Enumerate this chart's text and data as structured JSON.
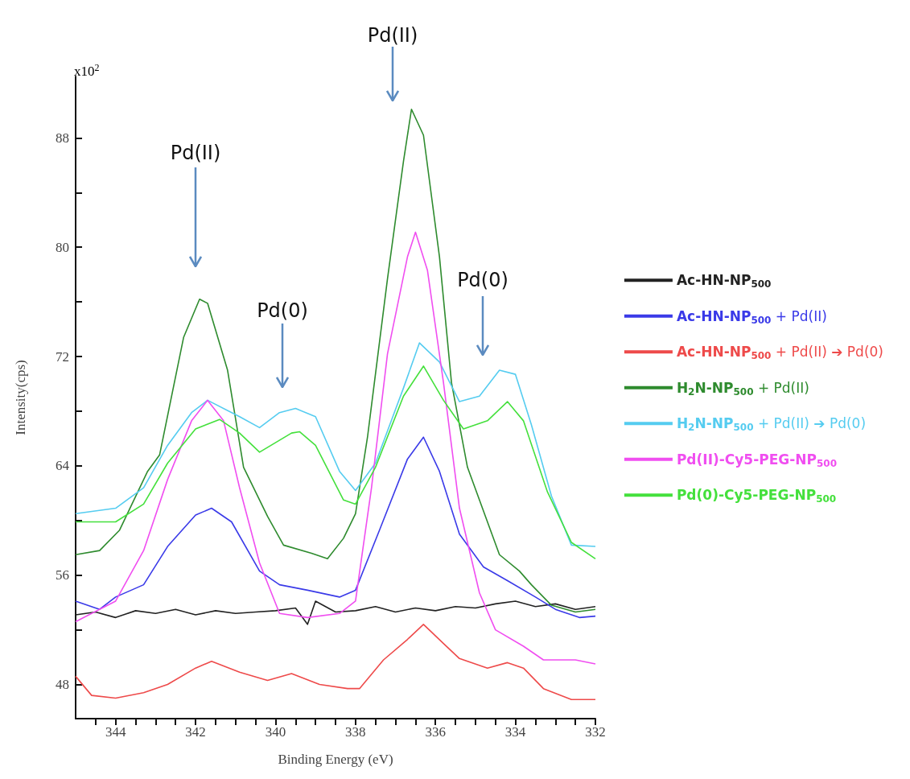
{
  "chart_data": {
    "type": "line",
    "xlabel": "Binding Energy (eV)",
    "ylabel": "Intensity(cps)",
    "xlim": [
      345,
      332
    ],
    "ylim": [
      45.5,
      92.5
    ],
    "xticks": [
      {
        "value": 344.5,
        "label": null
      },
      344,
      {
        "value": 343.5,
        "label": null
      },
      {
        "value": 343,
        "label": null
      },
      {
        "value": 342.5,
        "label": null
      },
      342,
      {
        "value": 341.5,
        "label": null
      },
      {
        "value": 341,
        "label": null
      },
      {
        "value": 340.5,
        "label": null
      },
      340,
      {
        "value": 339.5,
        "label": null
      },
      {
        "value": 339,
        "label": null
      },
      {
        "value": 338.5,
        "label": null
      },
      338,
      {
        "value": 337.5,
        "label": null
      },
      {
        "value": 337,
        "label": null
      },
      {
        "value": 336.5,
        "label": null
      },
      336,
      {
        "value": 335.5,
        "label": null
      },
      {
        "value": 335,
        "label": null
      },
      {
        "value": 334.5,
        "label": null
      },
      334,
      {
        "value": 333.5,
        "label": null
      },
      {
        "value": 333,
        "label": null
      },
      {
        "value": 332.5,
        "label": null
      },
      332
    ],
    "yticks": [
      48,
      {
        "value": 52,
        "label": null
      },
      56,
      {
        "value": 60,
        "label": null
      },
      64,
      {
        "value": 68,
        "label": null
      },
      72,
      {
        "value": 76,
        "label": null
      },
      80,
      {
        "value": 84,
        "label": null
      },
      88
    ],
    "grid": false,
    "legend": "right",
    "marker": "none",
    "line_style": "solid",
    "annotations": [
      "x10$^{2}$",
      "Pd(II)",
      "Pd(0)",
      "Pd(II)",
      "Pd(0)"
    ],
    "series": [
      {
        "name": "Ac-HN-NP$_{500}$",
        "color": "#222222",
        "x": [
          345,
          344.5,
          344,
          343.5,
          343,
          342.5,
          342,
          341.5,
          341,
          340.5,
          340,
          339.5,
          339.2,
          339,
          338.5,
          338,
          337.5,
          337,
          336.5,
          336,
          335.5,
          335,
          334.5,
          334,
          333.5,
          333,
          332.5,
          332
        ],
        "values": [
          53.1,
          53.3,
          52.9,
          53.4,
          53.2,
          53.5,
          53.1,
          53.4,
          53.2,
          53.3,
          53.4,
          53.6,
          52.4,
          54.1,
          53.3,
          53.4,
          53.7,
          53.3,
          53.6,
          53.4,
          53.7,
          53.6,
          53.9,
          54.1,
          53.7,
          53.9,
          53.5,
          53.7
        ]
      },
      {
        "name": "Ac-HN-NP$_{500}$ + Pd(II)",
        "color": "#3a3ae8",
        "x": [
          345,
          344.4,
          344,
          343.3,
          342.7,
          342,
          341.6,
          341.1,
          340.4,
          339.9,
          339.2,
          338.4,
          338,
          337.4,
          336.7,
          336.3,
          335.9,
          335.4,
          334.8,
          334.2,
          333.5,
          333,
          332.4,
          332
        ],
        "values": [
          54.1,
          53.5,
          54.4,
          55.3,
          58.1,
          60.4,
          60.9,
          59.9,
          56.3,
          55.3,
          54.9,
          54.4,
          54.9,
          59.3,
          64.5,
          66.1,
          63.6,
          59,
          56.6,
          55.6,
          54.4,
          53.5,
          52.9,
          53
        ]
      },
      {
        "name": "Ac-HN-NP$_{500}$ + Pd(II) ➔ Pd(0)",
        "color": "#ee4a4a",
        "x": [
          345,
          344.6,
          344,
          343.3,
          342.7,
          342,
          341.6,
          340.9,
          340.2,
          339.6,
          338.9,
          338.2,
          337.9,
          337.3,
          336.7,
          336.3,
          335.8,
          335.4,
          334.7,
          334.2,
          333.8,
          333.3,
          332.6,
          332
        ],
        "values": [
          48.6,
          47.2,
          47,
          47.4,
          48,
          49.2,
          49.7,
          48.9,
          48.3,
          48.8,
          48,
          47.7,
          47.7,
          49.8,
          51.3,
          52.4,
          51,
          49.9,
          49.2,
          49.6,
          49.2,
          47.7,
          46.9,
          46.9
        ]
      },
      {
        "name": "H$_{2}$N-NP$_{500}$ + Pd(II)",
        "color": "#2e8b2e",
        "x": [
          345,
          344.4,
          343.9,
          343.2,
          342.9,
          342.3,
          341.9,
          341.7,
          341.2,
          340.8,
          340.2,
          339.8,
          339.1,
          338.7,
          338.3,
          338,
          337.7,
          337.2,
          336.8,
          336.6,
          336.3,
          335.9,
          335.6,
          335.2,
          334.7,
          334.4,
          333.9,
          333.6,
          333.1,
          332.5,
          332
        ],
        "values": [
          57.5,
          57.8,
          59.3,
          63.6,
          64.8,
          73.4,
          76.2,
          75.9,
          71,
          63.9,
          60.3,
          58.2,
          57.6,
          57.2,
          58.7,
          60.5,
          66.1,
          77.7,
          86.3,
          90.1,
          88.2,
          79.3,
          70.1,
          63.9,
          59.9,
          57.5,
          56.3,
          55.3,
          53.8,
          53.3,
          53.5
        ]
      },
      {
        "name": "H$_{2}$N-NP$_{500}$ + Pd(II) ➔ Pd(0)",
        "color": "#55ccf0",
        "x": [
          345,
          344,
          343.3,
          342.7,
          342.1,
          341.7,
          340.9,
          340.4,
          339.9,
          339.5,
          339,
          338.4,
          338,
          337.5,
          336.8,
          336.4,
          335.9,
          335.4,
          334.9,
          334.4,
          334,
          333.6,
          333.1,
          332.6,
          332
        ],
        "values": [
          60.5,
          60.9,
          62.4,
          65.5,
          67.9,
          68.8,
          67.6,
          66.8,
          67.9,
          68.2,
          67.6,
          63.6,
          62.2,
          64.2,
          69.7,
          73,
          71.6,
          68.7,
          69.1,
          71,
          70.7,
          67,
          61.8,
          58.2,
          58.1
        ]
      },
      {
        "name": "Pd(II)-Cy5-PEG-NP$_{500}$",
        "color": "#f04ef0",
        "x": [
          345,
          344,
          343.3,
          342.7,
          342.1,
          341.7,
          341.3,
          340.9,
          340.4,
          339.9,
          339.2,
          338.4,
          338,
          337.6,
          337.2,
          336.7,
          336.5,
          336.2,
          335.8,
          335.4,
          334.9,
          334.5,
          333.8,
          333.3,
          332.5,
          332
        ],
        "values": [
          52.6,
          54.1,
          57.8,
          63,
          67.3,
          68.8,
          67.3,
          62.4,
          56.9,
          53.2,
          52.9,
          53.2,
          54.1,
          62.4,
          72.2,
          79.3,
          81.1,
          78.3,
          70.1,
          60.9,
          54.7,
          52,
          50.8,
          49.8,
          49.8,
          49.5
        ]
      },
      {
        "name": "Pd(0)-Cy5-PEG-NP$_{500}$",
        "color": "#44e03c",
        "x": [
          345,
          344,
          343.3,
          342.7,
          342,
          341.4,
          340.9,
          340.4,
          339.6,
          339.4,
          339,
          338.3,
          338,
          337.5,
          336.8,
          336.3,
          335.8,
          335.3,
          334.7,
          334.2,
          333.8,
          333.2,
          332.6,
          332
        ],
        "values": [
          59.9,
          59.9,
          61.2,
          64.2,
          66.7,
          67.4,
          66.4,
          65,
          66.4,
          66.5,
          65.5,
          61.5,
          61.2,
          63.9,
          69.1,
          71.3,
          68.8,
          66.7,
          67.3,
          68.7,
          67.3,
          62.1,
          58.4,
          57.2
        ]
      }
    ]
  }
}
